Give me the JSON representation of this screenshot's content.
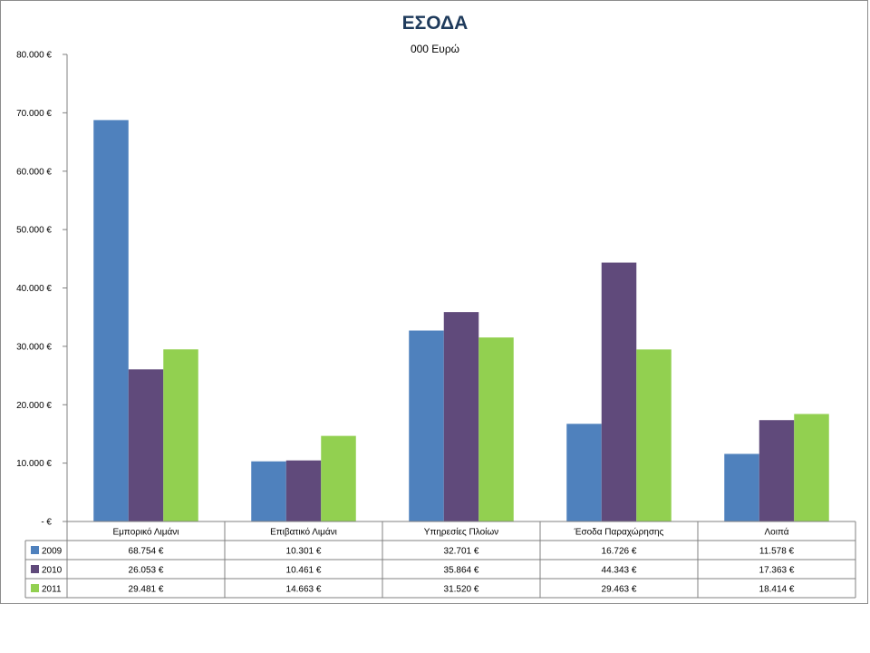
{
  "chart_data": {
    "type": "bar",
    "title": "ΕΣΟΔΑ",
    "subtitle": "000 Ευρώ",
    "xlabel": "",
    "ylabel": "",
    "ylim": [
      0,
      80000
    ],
    "yticks": [
      0,
      10000,
      20000,
      30000,
      40000,
      50000,
      60000,
      70000,
      80000
    ],
    "ytick_labels": [
      " -  €",
      "10.000 €",
      "20.000 €",
      "30.000 €",
      "40.000 €",
      "50.000 €",
      "60.000 €",
      "70.000 €",
      "80.000 €"
    ],
    "categories": [
      "Εμπορικό Λιμάνι",
      "Επιβατικό Λιμάνι",
      "Υπηρεσίες Πλοίων",
      "Έσοδα Παραχώρησης",
      "Λοιπά"
    ],
    "series": [
      {
        "name": "2009",
        "color": "#4f81bd",
        "values": [
          68754,
          10301,
          32701,
          16726,
          11578
        ],
        "labels": [
          "68.754 €",
          "10.301 €",
          "32.701 €",
          "16.726 €",
          "11.578 €"
        ]
      },
      {
        "name": "2010",
        "color": "#604a7b",
        "values": [
          26053,
          10461,
          35864,
          44343,
          17363
        ],
        "labels": [
          "26.053 €",
          "10.461 €",
          "35.864 €",
          "44.343 €",
          "17.363 €"
        ]
      },
      {
        "name": "2011",
        "color": "#92d050",
        "values": [
          29481,
          14663,
          31520,
          29463,
          18414
        ],
        "labels": [
          "29.481 €",
          "14.663 €",
          "31.520 €",
          "29.463 €",
          "18.414 €"
        ]
      }
    ],
    "grid": false,
    "legend": "data-table"
  }
}
